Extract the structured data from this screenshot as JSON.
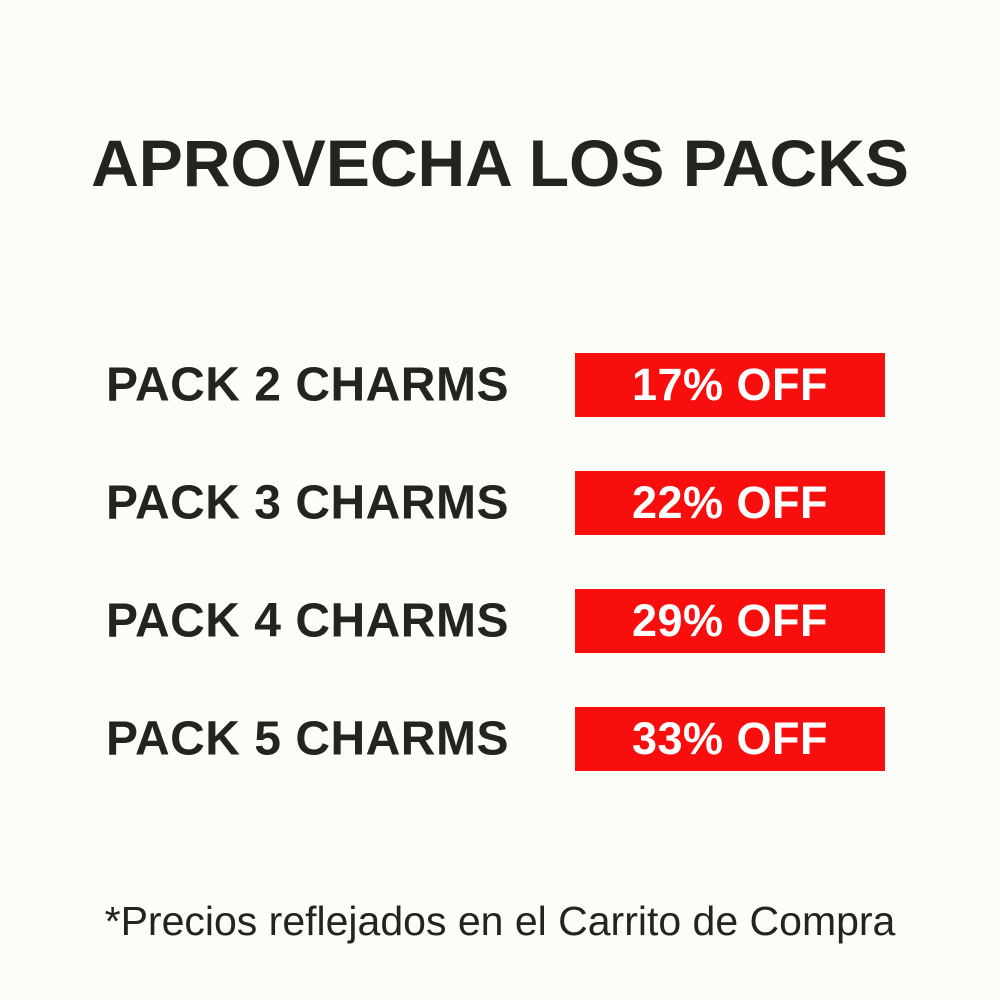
{
  "page": {
    "background_color": "#FCFCF8",
    "text_color": "#21251E",
    "accent_color": "#F90E0E",
    "badge_text_color": "#FFFFFF"
  },
  "title": "APROVECHA LOS PACKS",
  "packs": [
    {
      "label": "PACK 2 CHARMS",
      "discount": "17% OFF"
    },
    {
      "label": "PACK 3 CHARMS",
      "discount": "22% OFF"
    },
    {
      "label": "PACK 4 CHARMS",
      "discount": "29% OFF"
    },
    {
      "label": "PACK 5 CHARMS",
      "discount": "33% OFF"
    }
  ],
  "footnote": "*Precios reflejados en el Carrito de Compra"
}
